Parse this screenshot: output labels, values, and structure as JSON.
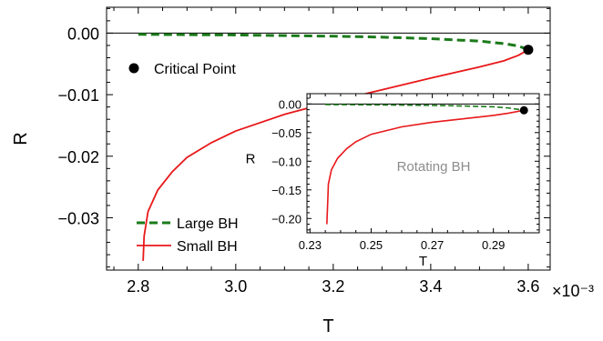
{
  "chart_data": [
    {
      "type": "line",
      "title": "",
      "xlabel": "T",
      "ylabel": "R",
      "x_multiplier_label": "×10⁻³",
      "xlim": [
        2.735,
        3.645
      ],
      "ylim": [
        -0.0385,
        0.0042
      ],
      "xticks": [
        2.8,
        3.0,
        3.2,
        3.4,
        3.6
      ],
      "xtick_labels": [
        "2.8",
        "3.0",
        "3.2",
        "3.4",
        "3.6"
      ],
      "yticks": [
        0.0,
        -0.01,
        -0.02,
        -0.03
      ],
      "ytick_labels": [
        "0.00",
        "−0.01",
        "−0.02",
        "−0.03"
      ],
      "legend_position": "bottom-left",
      "series": [
        {
          "name": "Large BH",
          "color": "#1a7a1a",
          "style": "dashed",
          "x": [
            2.8,
            2.9,
            3.0,
            3.1,
            3.2,
            3.3,
            3.4,
            3.5,
            3.55,
            3.58,
            3.6
          ],
          "y": [
            -0.0002,
            -0.00025,
            -0.0003,
            -0.0004,
            -0.0005,
            -0.00065,
            -0.0009,
            -0.0013,
            -0.0017,
            -0.0021,
            -0.0027
          ]
        },
        {
          "name": "Small BH",
          "color": "#e8181a",
          "style": "solid",
          "x": [
            2.81,
            2.812,
            2.82,
            2.84,
            2.87,
            2.9,
            2.95,
            3.0,
            3.1,
            3.2,
            3.3,
            3.4,
            3.5,
            3.55,
            3.58,
            3.6
          ],
          "y": [
            -0.037,
            -0.033,
            -0.029,
            -0.0255,
            -0.0225,
            -0.0202,
            -0.0178,
            -0.0159,
            -0.0132,
            -0.0111,
            -0.0092,
            -0.0073,
            -0.0055,
            -0.0045,
            -0.0036,
            -0.0027
          ]
        }
      ],
      "critical_point": {
        "label": "Critical Point",
        "x": 3.6,
        "y": -0.0027
      },
      "zero_line": 0
    },
    {
      "type": "line",
      "title": "",
      "xlabel": "T",
      "ylabel": "R",
      "annotation": "Rotating BH",
      "xlim": [
        0.229,
        0.305
      ],
      "ylim": [
        -0.225,
        0.018
      ],
      "xticks": [
        0.23,
        0.25,
        0.27,
        0.29
      ],
      "xtick_labels": [
        "0.23",
        "0.25",
        "0.27",
        "0.29"
      ],
      "yticks": [
        0.0,
        -0.05,
        -0.1,
        -0.15,
        -0.2
      ],
      "ytick_labels": [
        "0.00",
        "−0.05",
        "−0.10",
        "−0.15",
        "−0.20"
      ],
      "series": [
        {
          "name": "Large BH",
          "color": "#1a7a1a",
          "style": "dashed",
          "x": [
            0.235,
            0.25,
            0.26,
            0.27,
            0.28,
            0.29,
            0.295,
            0.3
          ],
          "y": [
            -0.001,
            -0.0015,
            -0.002,
            -0.0025,
            -0.0035,
            -0.005,
            -0.007,
            -0.011
          ]
        },
        {
          "name": "Small BH",
          "color": "#e8181a",
          "style": "solid",
          "x": [
            0.2355,
            0.2358,
            0.236,
            0.237,
            0.239,
            0.242,
            0.245,
            0.25,
            0.26,
            0.27,
            0.28,
            0.29,
            0.295,
            0.3
          ],
          "y": [
            -0.21,
            -0.17,
            -0.14,
            -0.115,
            -0.095,
            -0.078,
            -0.066,
            -0.053,
            -0.04,
            -0.032,
            -0.026,
            -0.02,
            -0.016,
            -0.011
          ]
        }
      ],
      "critical_point": {
        "x": 0.3,
        "y": -0.011
      },
      "zero_line": 0
    }
  ]
}
